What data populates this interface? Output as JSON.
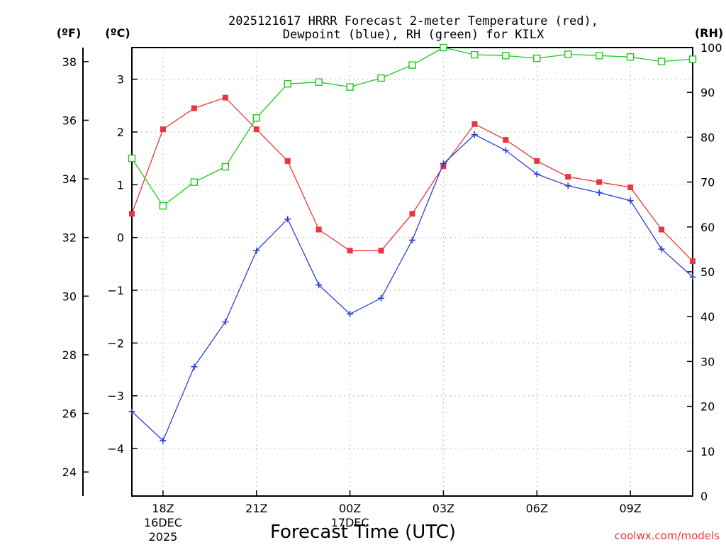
{
  "chart_data": {
    "type": "line",
    "title_line1": "2025121617 HRRR Forecast 2-meter Temperature (red),",
    "title_line2": "Dewpoint (blue), RH (green) for KILX",
    "xlabel": "Forecast Time (UTC)",
    "credit": "coolwx.com/models",
    "units": {
      "fahrenheit": "(ºF)",
      "celsius": "(ºC)",
      "rh": "(RH)"
    },
    "x_hours": [
      0,
      1,
      2,
      3,
      4,
      5,
      6,
      7,
      8,
      9,
      10,
      11,
      12,
      13,
      14,
      15,
      16,
      17,
      18
    ],
    "x_ticks": [
      {
        "hour": 1,
        "label": "18Z",
        "label2": "16DEC",
        "label3": "2025"
      },
      {
        "hour": 4,
        "label": "21Z"
      },
      {
        "hour": 7,
        "label": "00Z",
        "label2": "17DEC"
      },
      {
        "hour": 10,
        "label": "03Z"
      },
      {
        "hour": 13,
        "label": "06Z"
      },
      {
        "hour": 16,
        "label": "09Z"
      }
    ],
    "celsius_range": [
      -4.9,
      3.6
    ],
    "celsius_ticks": [
      {
        "value": 3,
        "label": "3"
      },
      {
        "value": 2,
        "label": "2"
      },
      {
        "value": 1,
        "label": "1"
      },
      {
        "value": 0,
        "label": "0"
      },
      {
        "value": -1,
        "label": "−1"
      },
      {
        "value": -2,
        "label": "−2"
      },
      {
        "value": -3,
        "label": "−3"
      },
      {
        "value": -4,
        "label": "−4"
      }
    ],
    "fahrenheit_ticks": [
      {
        "value": 38,
        "label": "38"
      },
      {
        "value": 36,
        "label": "36"
      },
      {
        "value": 34,
        "label": "34"
      },
      {
        "value": 32,
        "label": "32"
      },
      {
        "value": 30,
        "label": "30"
      },
      {
        "value": 28,
        "label": "28"
      },
      {
        "value": 26,
        "label": "26"
      },
      {
        "value": 24,
        "label": "24"
      }
    ],
    "rh_range": [
      0,
      100
    ],
    "rh_ticks": [
      {
        "value": 100,
        "label": "100"
      },
      {
        "value": 90,
        "label": "90"
      },
      {
        "value": 80,
        "label": "80"
      },
      {
        "value": 70,
        "label": "70"
      },
      {
        "value": 60,
        "label": "60"
      },
      {
        "value": 50,
        "label": "50"
      },
      {
        "value": 40,
        "label": "40"
      },
      {
        "value": 30,
        "label": "30"
      },
      {
        "value": 20,
        "label": "20"
      },
      {
        "value": 10,
        "label": "10"
      },
      {
        "value": 0,
        "label": "0"
      }
    ],
    "series": [
      {
        "name": "Temperature",
        "axis": "celsius",
        "color": "#e8363c",
        "marker": "filled-square",
        "values": [
          0.45,
          2.05,
          2.45,
          2.65,
          2.05,
          1.45,
          0.15,
          -0.25,
          -0.25,
          0.45,
          1.35,
          2.15,
          1.85,
          1.45,
          1.15,
          1.05,
          0.95,
          0.15,
          -0.45
        ]
      },
      {
        "name": "Dewpoint",
        "axis": "celsius",
        "color": "#2a3fd8",
        "marker": "plus",
        "values": [
          -3.3,
          -3.85,
          -2.45,
          -1.6,
          -0.25,
          0.35,
          -0.9,
          -1.45,
          -1.15,
          -0.05,
          1.4,
          1.95,
          1.65,
          1.2,
          0.98,
          0.85,
          0.7,
          -0.22,
          -0.75
        ]
      },
      {
        "name": "RH",
        "axis": "rh",
        "color": "#20c820",
        "marker": "open-square",
        "values": [
          75.3,
          64.7,
          70.0,
          73.4,
          84.3,
          91.9,
          92.3,
          91.2,
          93.2,
          96.1,
          100.0,
          98.4,
          98.2,
          97.6,
          98.5,
          98.2,
          97.9,
          96.9,
          97.4
        ]
      }
    ]
  }
}
